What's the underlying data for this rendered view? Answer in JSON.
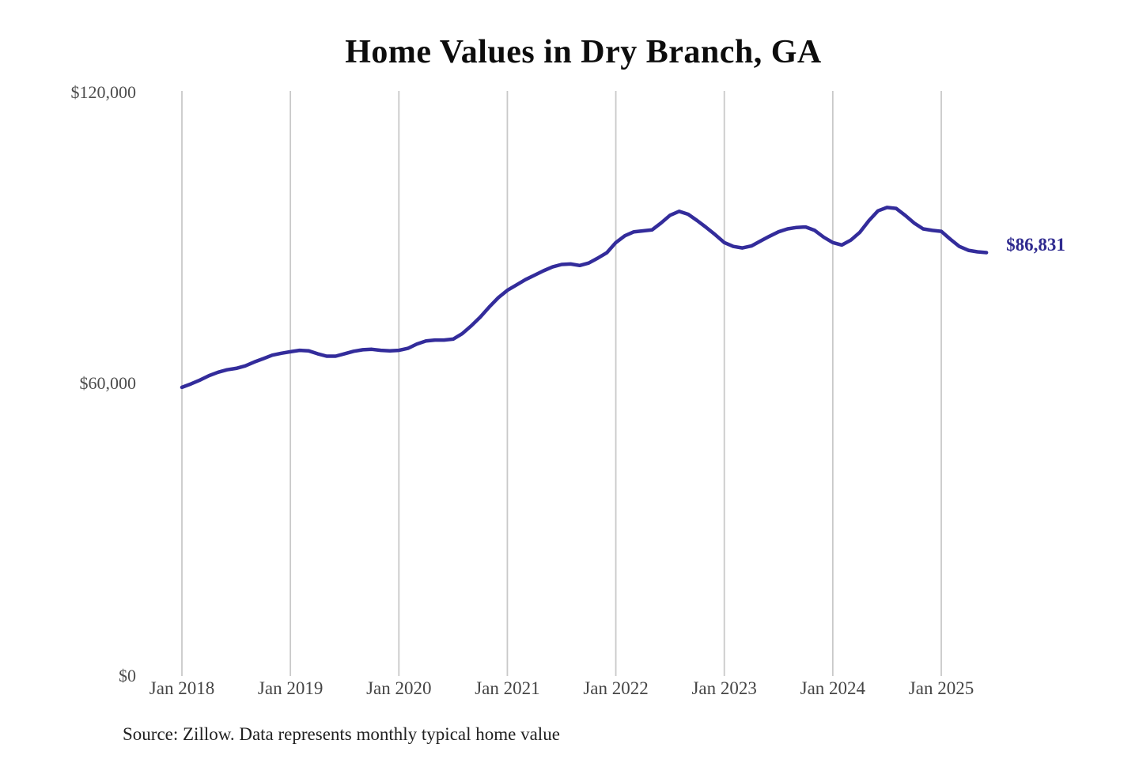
{
  "page": {
    "background": "#ffffff"
  },
  "chart_data": {
    "type": "line",
    "title": "Home Values in Dry Branch, GA",
    "ylabel": "",
    "xlabel": "",
    "ylim": [
      0,
      120000
    ],
    "grid": "vertical-only",
    "legend": "none",
    "line_color": "#332c9b",
    "gridline_color": "#c9c9c9",
    "end_label": "$86,831",
    "end_value": 86831,
    "ytick_labels": [
      "$120,000",
      "$60,000",
      "$0"
    ],
    "xtick_labels": [
      "Jan 2018",
      "Jan 2019",
      "Jan 2020",
      "Jan 2021",
      "Jan 2022",
      "Jan 2023",
      "Jan 2024",
      "Jan 2025"
    ],
    "series": [
      {
        "name": "Monthly typical home value",
        "start_month": "2018-01",
        "end_month": "2025-06",
        "values": [
          59200,
          59900,
          60700,
          61600,
          62300,
          62800,
          63100,
          63600,
          64400,
          65100,
          65800,
          66200,
          66500,
          66800,
          66700,
          66100,
          65600,
          65600,
          66100,
          66600,
          66900,
          67000,
          66800,
          66700,
          66800,
          67200,
          68100,
          68700,
          68900,
          68900,
          69100,
          70200,
          71800,
          73600,
          75700,
          77600,
          79100,
          80200,
          81300,
          82200,
          83100,
          83900,
          84400,
          84500,
          84200,
          84700,
          85700,
          86800,
          88900,
          90300,
          91100,
          91300,
          91500,
          92900,
          94500,
          95300,
          94700,
          93400,
          92000,
          90500,
          88900,
          88100,
          87800,
          88200,
          89200,
          90200,
          91100,
          91700,
          92000,
          92100,
          91400,
          90000,
          88900,
          88400,
          89400,
          91000,
          93400,
          95400,
          96100,
          95900,
          94500,
          92900,
          91700,
          91400,
          91200,
          89600,
          88100,
          87300,
          87000,
          86831
        ]
      }
    ]
  },
  "footer": {
    "source": "Source: Zillow. Data represents monthly typical home value"
  }
}
